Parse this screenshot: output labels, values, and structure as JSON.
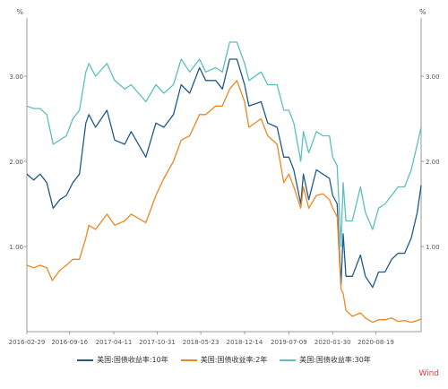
{
  "chart_data": {
    "type": "line",
    "y_unit_left": "%",
    "y_unit_right": "%",
    "ylim": [
      0,
      3.6
    ],
    "y_ticks": [
      1.0,
      2.0,
      3.0
    ],
    "y_tick_labels": [
      "1.00",
      "2.00",
      "3.00"
    ],
    "x_range": [
      "2016-02-29",
      "2021-03-19"
    ],
    "x_ticks": [
      "2016-02-29",
      "2016-09-16",
      "2017-04-11",
      "2017-10-31",
      "2018-05-23",
      "2018-12-14",
      "2019-07-09",
      "2020-01-30",
      "2020-08-19"
    ],
    "grid": false,
    "legend_position": "bottom",
    "series": [
      {
        "name": "美国:国债收益率:10年",
        "color": "#1f5a8a",
        "points": [
          [
            "2016-02-29",
            1.85
          ],
          [
            "2016-04-01",
            1.78
          ],
          [
            "2016-05-01",
            1.85
          ],
          [
            "2016-06-01",
            1.75
          ],
          [
            "2016-07-01",
            1.45
          ],
          [
            "2016-08-01",
            1.55
          ],
          [
            "2016-09-01",
            1.6
          ],
          [
            "2016-10-01",
            1.75
          ],
          [
            "2016-11-01",
            1.85
          ],
          [
            "2016-12-01",
            2.45
          ],
          [
            "2016-12-15",
            2.55
          ],
          [
            "2017-01-15",
            2.4
          ],
          [
            "2017-03-10",
            2.6
          ],
          [
            "2017-04-15",
            2.25
          ],
          [
            "2017-06-01",
            2.2
          ],
          [
            "2017-07-01",
            2.35
          ],
          [
            "2017-09-08",
            2.05
          ],
          [
            "2017-10-25",
            2.45
          ],
          [
            "2017-12-01",
            2.4
          ],
          [
            "2018-01-15",
            2.55
          ],
          [
            "2018-02-20",
            2.9
          ],
          [
            "2018-04-01",
            2.8
          ],
          [
            "2018-05-17",
            3.1
          ],
          [
            "2018-06-15",
            2.95
          ],
          [
            "2018-08-01",
            2.95
          ],
          [
            "2018-09-01",
            2.85
          ],
          [
            "2018-10-05",
            3.2
          ],
          [
            "2018-11-08",
            3.2
          ],
          [
            "2018-12-14",
            2.9
          ],
          [
            "2019-01-03",
            2.65
          ],
          [
            "2019-03-01",
            2.7
          ],
          [
            "2019-04-01",
            2.45
          ],
          [
            "2019-05-15",
            2.4
          ],
          [
            "2019-06-15",
            2.05
          ],
          [
            "2019-07-09",
            2.05
          ],
          [
            "2019-08-01",
            1.9
          ],
          [
            "2019-09-03",
            1.5
          ],
          [
            "2019-09-15",
            1.85
          ],
          [
            "2019-10-10",
            1.55
          ],
          [
            "2019-11-15",
            1.9
          ],
          [
            "2019-12-15",
            1.85
          ],
          [
            "2020-01-15",
            1.8
          ],
          [
            "2020-01-30",
            1.6
          ],
          [
            "2020-02-20",
            1.5
          ],
          [
            "2020-03-09",
            0.55
          ],
          [
            "2020-03-19",
            1.15
          ],
          [
            "2020-04-01",
            0.65
          ],
          [
            "2020-05-01",
            0.65
          ],
          [
            "2020-06-08",
            0.9
          ],
          [
            "2020-07-01",
            0.65
          ],
          [
            "2020-08-04",
            0.52
          ],
          [
            "2020-09-01",
            0.7
          ],
          [
            "2020-10-01",
            0.7
          ],
          [
            "2020-11-01",
            0.85
          ],
          [
            "2020-12-01",
            0.92
          ],
          [
            "2021-01-01",
            0.92
          ],
          [
            "2021-02-01",
            1.1
          ],
          [
            "2021-03-01",
            1.4
          ],
          [
            "2021-03-19",
            1.72
          ]
        ]
      },
      {
        "name": "美国:国债收益率:2年",
        "color": "#f0861f",
        "points": [
          [
            "2016-02-29",
            0.78
          ],
          [
            "2016-04-01",
            0.75
          ],
          [
            "2016-05-01",
            0.78
          ],
          [
            "2016-06-01",
            0.75
          ],
          [
            "2016-06-27",
            0.6
          ],
          [
            "2016-08-01",
            0.72
          ],
          [
            "2016-09-01",
            0.78
          ],
          [
            "2016-10-01",
            0.85
          ],
          [
            "2016-11-01",
            0.85
          ],
          [
            "2016-12-01",
            1.1
          ],
          [
            "2016-12-15",
            1.25
          ],
          [
            "2017-01-15",
            1.2
          ],
          [
            "2017-03-10",
            1.38
          ],
          [
            "2017-04-15",
            1.25
          ],
          [
            "2017-06-01",
            1.3
          ],
          [
            "2017-07-01",
            1.38
          ],
          [
            "2017-09-08",
            1.28
          ],
          [
            "2017-10-25",
            1.6
          ],
          [
            "2017-12-01",
            1.8
          ],
          [
            "2018-01-15",
            2.0
          ],
          [
            "2018-02-20",
            2.25
          ],
          [
            "2018-04-01",
            2.3
          ],
          [
            "2018-05-17",
            2.55
          ],
          [
            "2018-06-15",
            2.55
          ],
          [
            "2018-08-01",
            2.65
          ],
          [
            "2018-09-01",
            2.65
          ],
          [
            "2018-10-05",
            2.85
          ],
          [
            "2018-11-08",
            2.95
          ],
          [
            "2018-12-14",
            2.7
          ],
          [
            "2019-01-03",
            2.4
          ],
          [
            "2019-03-01",
            2.5
          ],
          [
            "2019-04-01",
            2.3
          ],
          [
            "2019-05-15",
            2.2
          ],
          [
            "2019-06-15",
            1.75
          ],
          [
            "2019-07-09",
            1.85
          ],
          [
            "2019-08-01",
            1.7
          ],
          [
            "2019-09-03",
            1.45
          ],
          [
            "2019-09-15",
            1.7
          ],
          [
            "2019-10-10",
            1.45
          ],
          [
            "2019-11-15",
            1.6
          ],
          [
            "2019-12-15",
            1.62
          ],
          [
            "2020-01-15",
            1.55
          ],
          [
            "2020-01-30",
            1.45
          ],
          [
            "2020-02-20",
            1.35
          ],
          [
            "2020-03-09",
            0.5
          ],
          [
            "2020-03-19",
            0.45
          ],
          [
            "2020-04-01",
            0.25
          ],
          [
            "2020-05-01",
            0.18
          ],
          [
            "2020-06-08",
            0.22
          ],
          [
            "2020-07-01",
            0.16
          ],
          [
            "2020-08-04",
            0.11
          ],
          [
            "2020-09-01",
            0.14
          ],
          [
            "2020-10-01",
            0.14
          ],
          [
            "2020-11-01",
            0.16
          ],
          [
            "2020-12-01",
            0.12
          ],
          [
            "2021-01-01",
            0.13
          ],
          [
            "2021-02-01",
            0.11
          ],
          [
            "2021-03-01",
            0.13
          ],
          [
            "2021-03-19",
            0.15
          ]
        ]
      },
      {
        "name": "美国:国债收益率:30年",
        "color": "#5bbfbe",
        "points": [
          [
            "2016-02-29",
            2.65
          ],
          [
            "2016-04-01",
            2.62
          ],
          [
            "2016-05-01",
            2.62
          ],
          [
            "2016-06-01",
            2.55
          ],
          [
            "2016-07-01",
            2.2
          ],
          [
            "2016-08-01",
            2.25
          ],
          [
            "2016-09-01",
            2.3
          ],
          [
            "2016-10-01",
            2.5
          ],
          [
            "2016-11-01",
            2.6
          ],
          [
            "2016-12-01",
            3.05
          ],
          [
            "2016-12-15",
            3.15
          ],
          [
            "2017-01-15",
            3.0
          ],
          [
            "2017-03-10",
            3.15
          ],
          [
            "2017-04-15",
            2.95
          ],
          [
            "2017-06-01",
            2.85
          ],
          [
            "2017-07-01",
            2.9
          ],
          [
            "2017-09-08",
            2.7
          ],
          [
            "2017-10-25",
            2.9
          ],
          [
            "2017-12-01",
            2.8
          ],
          [
            "2018-01-15",
            2.9
          ],
          [
            "2018-02-20",
            3.2
          ],
          [
            "2018-04-01",
            3.05
          ],
          [
            "2018-05-17",
            3.2
          ],
          [
            "2018-06-15",
            3.05
          ],
          [
            "2018-08-01",
            3.1
          ],
          [
            "2018-09-01",
            3.05
          ],
          [
            "2018-10-05",
            3.4
          ],
          [
            "2018-11-08",
            3.4
          ],
          [
            "2018-12-14",
            3.15
          ],
          [
            "2019-01-03",
            2.95
          ],
          [
            "2019-03-01",
            3.05
          ],
          [
            "2019-04-01",
            2.9
          ],
          [
            "2019-05-15",
            2.9
          ],
          [
            "2019-06-15",
            2.6
          ],
          [
            "2019-07-09",
            2.6
          ],
          [
            "2019-08-01",
            2.45
          ],
          [
            "2019-09-03",
            2.0
          ],
          [
            "2019-09-15",
            2.35
          ],
          [
            "2019-10-10",
            2.1
          ],
          [
            "2019-11-15",
            2.35
          ],
          [
            "2019-12-15",
            2.3
          ],
          [
            "2020-01-15",
            2.3
          ],
          [
            "2020-01-30",
            2.05
          ],
          [
            "2020-02-20",
            1.95
          ],
          [
            "2020-03-09",
            1.0
          ],
          [
            "2020-03-19",
            1.75
          ],
          [
            "2020-04-01",
            1.3
          ],
          [
            "2020-05-01",
            1.3
          ],
          [
            "2020-06-08",
            1.7
          ],
          [
            "2020-07-01",
            1.4
          ],
          [
            "2020-08-04",
            1.2
          ],
          [
            "2020-09-01",
            1.45
          ],
          [
            "2020-10-01",
            1.5
          ],
          [
            "2020-11-01",
            1.6
          ],
          [
            "2020-12-01",
            1.7
          ],
          [
            "2021-01-01",
            1.7
          ],
          [
            "2021-02-01",
            1.9
          ],
          [
            "2021-03-01",
            2.2
          ],
          [
            "2021-03-19",
            2.4
          ]
        ]
      }
    ]
  },
  "watermark": "Wind",
  "watermark_color": "#e23b3b"
}
